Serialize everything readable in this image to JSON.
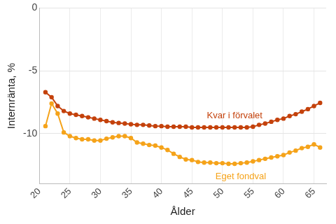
{
  "chart_data": {
    "type": "line",
    "x_label": "Ålder",
    "y_label": "Internränta, %",
    "x": [
      21,
      22,
      23,
      24,
      25,
      26,
      27,
      28,
      29,
      30,
      31,
      32,
      33,
      34,
      35,
      36,
      37,
      38,
      39,
      40,
      41,
      42,
      43,
      44,
      45,
      46,
      47,
      48,
      49,
      50,
      51,
      52,
      53,
      54,
      55,
      56,
      57,
      58,
      59,
      60,
      61,
      62,
      63,
      64,
      65,
      66
    ],
    "series": [
      {
        "name": "Kvar i förvalet",
        "color": "#c4420c",
        "marker": "circle",
        "line_style": "solid",
        "values": [
          -6.7,
          -7.1,
          -7.8,
          -8.2,
          -8.4,
          -8.5,
          -8.6,
          -8.7,
          -8.8,
          -8.9,
          -9.0,
          -9.1,
          -9.15,
          -9.2,
          -9.25,
          -9.3,
          -9.3,
          -9.35,
          -9.4,
          -9.4,
          -9.45,
          -9.45,
          -9.45,
          -9.45,
          -9.5,
          -9.5,
          -9.5,
          -9.5,
          -9.5,
          -9.5,
          -9.5,
          -9.5,
          -9.5,
          -9.5,
          -9.45,
          -9.3,
          -9.2,
          -9.05,
          -8.9,
          -8.8,
          -8.6,
          -8.45,
          -8.25,
          -8.05,
          -7.8,
          -7.55
        ]
      },
      {
        "name": "Eget fondval",
        "color": "#f5a31a",
        "marker": "circle",
        "line_style": "solid",
        "values": [
          -9.4,
          -7.6,
          -8.4,
          -9.9,
          -10.2,
          -10.35,
          -10.45,
          -10.45,
          -10.55,
          -10.55,
          -10.4,
          -10.3,
          -10.2,
          -10.2,
          -10.35,
          -10.7,
          -10.8,
          -10.9,
          -10.95,
          -11.1,
          -11.3,
          -11.6,
          -11.85,
          -12.05,
          -12.1,
          -12.25,
          -12.3,
          -12.3,
          -12.35,
          -12.35,
          -12.4,
          -12.4,
          -12.35,
          -12.3,
          -12.2,
          -12.1,
          -12.0,
          -11.9,
          -11.8,
          -11.7,
          -11.5,
          -11.35,
          -11.15,
          -11.05,
          -10.85,
          -11.1
        ]
      }
    ],
    "annotations": [
      {
        "text": "Kvar i förvalet",
        "x": 52,
        "y": -8.6,
        "color": "#c4420c"
      },
      {
        "text": "Eget fondval",
        "x": 53,
        "y": -13.4,
        "color": "#f5a31a"
      }
    ],
    "xlim": [
      20,
      67
    ],
    "xticks": [
      20,
      25,
      30,
      35,
      40,
      45,
      50,
      55,
      60,
      65
    ],
    "ylim": [
      -14,
      0
    ],
    "yticks": [
      -10,
      -5,
      0
    ],
    "grid": true,
    "legend": "none"
  }
}
